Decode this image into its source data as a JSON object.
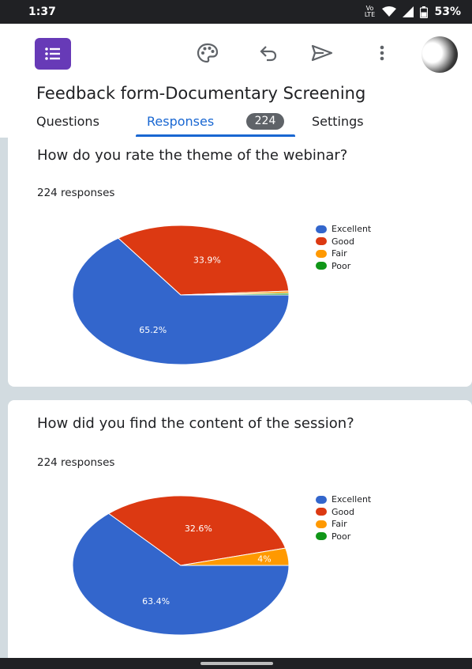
{
  "status_bar": {
    "time": "1:37",
    "icons": [
      "volte-icon",
      "wifi-icon",
      "signal-icon",
      "battery-icon"
    ],
    "volte": "Vo LTE",
    "battery": "53%"
  },
  "app_bar": {
    "icons": [
      "forms-logo-icon",
      "palette-icon",
      "undo-icon",
      "send-icon",
      "more-vert-icon",
      "avatar"
    ]
  },
  "form": {
    "title": "Feedback form-Documentary Screening"
  },
  "tabs": [
    {
      "label": "Questions"
    },
    {
      "label": "Responses",
      "badge": "224",
      "active": true
    },
    {
      "label": "Settings"
    }
  ],
  "colors": {
    "excellent": "#3366cc",
    "good": "#dc3912",
    "fair": "#ff9900",
    "poor": "#109618",
    "accent": "#1967d2",
    "forms_purple": "#673ab7"
  },
  "questions": [
    {
      "title": "How do you rate the theme of the webinar?",
      "count": "224 responses"
    },
    {
      "title": "How did you find the content of the session?",
      "count": "224 responses"
    }
  ],
  "chart_data": [
    {
      "type": "pie",
      "categories": [
        "Excellent",
        "Good",
        "Fair",
        "Poor"
      ],
      "values": [
        65.2,
        33.9,
        0.5,
        0.4
      ],
      "data_labels": [
        "65.2%",
        "33.9%",
        "",
        ""
      ],
      "legend_position": "right"
    },
    {
      "type": "pie",
      "categories": [
        "Excellent",
        "Good",
        "Fair",
        "Poor"
      ],
      "values": [
        63.4,
        32.6,
        4,
        0
      ],
      "data_labels": [
        "63.4%",
        "32.6%",
        "4%",
        ""
      ],
      "legend_position": "right"
    }
  ]
}
